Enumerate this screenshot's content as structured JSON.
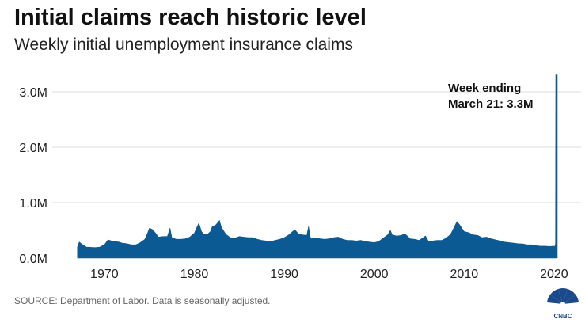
{
  "header": {
    "title": "Initial claims reach historic level",
    "subtitle": "Weekly initial unemployment insurance claims"
  },
  "footer": {
    "source": "SOURCE: Department of Labor. Data is seasonally adjusted.",
    "logo_text": "CNBC"
  },
  "colors": {
    "bar": "#0b5a93",
    "grid": "#dcdcdc",
    "text": "#111111"
  },
  "chart_data": {
    "type": "area",
    "title": "Initial claims reach historic level",
    "subtitle": "Weekly initial unemployment insurance claims",
    "xlabel": "",
    "ylabel": "",
    "xlim": [
      1964.2,
      2023.0
    ],
    "ylim": [
      0,
      3300000
    ],
    "yticks": [
      {
        "value": 0,
        "label": "0.0M"
      },
      {
        "value": 1000000,
        "label": "1.0M"
      },
      {
        "value": 2000000,
        "label": "2.0M"
      },
      {
        "value": 3000000,
        "label": "3.0M"
      }
    ],
    "xticks": [
      {
        "value": 1970,
        "label": "1970"
      },
      {
        "value": 1980,
        "label": "1980"
      },
      {
        "value": 1990,
        "label": "1990"
      },
      {
        "value": 2000,
        "label": "2000"
      },
      {
        "value": 2010,
        "label": "2010"
      },
      {
        "value": 2020,
        "label": "2020"
      }
    ],
    "grid": "horizontal",
    "series": [
      {
        "points": [
          [
            1967.0,
            200000
          ],
          [
            1967.2,
            290000
          ],
          [
            1967.6,
            240000
          ],
          [
            1968.0,
            200000
          ],
          [
            1968.5,
            195000
          ],
          [
            1969.0,
            190000
          ],
          [
            1969.5,
            200000
          ],
          [
            1970.0,
            240000
          ],
          [
            1970.4,
            330000
          ],
          [
            1970.8,
            310000
          ],
          [
            1971.2,
            300000
          ],
          [
            1971.6,
            290000
          ],
          [
            1972.0,
            270000
          ],
          [
            1972.5,
            260000
          ],
          [
            1973.0,
            240000
          ],
          [
            1973.5,
            240000
          ],
          [
            1974.0,
            280000
          ],
          [
            1974.5,
            340000
          ],
          [
            1974.8,
            450000
          ],
          [
            1975.0,
            540000
          ],
          [
            1975.3,
            520000
          ],
          [
            1975.7,
            450000
          ],
          [
            1976.0,
            380000
          ],
          [
            1976.5,
            390000
          ],
          [
            1977.0,
            390000
          ],
          [
            1977.3,
            540000
          ],
          [
            1977.5,
            370000
          ],
          [
            1978.0,
            340000
          ],
          [
            1978.5,
            340000
          ],
          [
            1979.0,
            350000
          ],
          [
            1979.5,
            380000
          ],
          [
            1980.0,
            450000
          ],
          [
            1980.3,
            560000
          ],
          [
            1980.5,
            630000
          ],
          [
            1980.8,
            480000
          ],
          [
            1981.0,
            440000
          ],
          [
            1981.4,
            420000
          ],
          [
            1981.8,
            480000
          ],
          [
            1982.0,
            570000
          ],
          [
            1982.4,
            600000
          ],
          [
            1982.8,
            680000
          ],
          [
            1983.0,
            560000
          ],
          [
            1983.5,
            430000
          ],
          [
            1984.0,
            370000
          ],
          [
            1984.5,
            360000
          ],
          [
            1985.0,
            390000
          ],
          [
            1985.5,
            380000
          ],
          [
            1986.0,
            370000
          ],
          [
            1986.5,
            370000
          ],
          [
            1987.0,
            340000
          ],
          [
            1987.5,
            320000
          ],
          [
            1988.0,
            310000
          ],
          [
            1988.5,
            300000
          ],
          [
            1989.0,
            320000
          ],
          [
            1989.5,
            340000
          ],
          [
            1990.0,
            370000
          ],
          [
            1990.5,
            420000
          ],
          [
            1991.0,
            490000
          ],
          [
            1991.2,
            510000
          ],
          [
            1991.6,
            430000
          ],
          [
            1992.0,
            420000
          ],
          [
            1992.5,
            410000
          ],
          [
            1992.7,
            570000
          ],
          [
            1992.9,
            380000
          ],
          [
            1993.0,
            350000
          ],
          [
            1993.5,
            360000
          ],
          [
            1994.0,
            350000
          ],
          [
            1994.5,
            340000
          ],
          [
            1995.0,
            350000
          ],
          [
            1995.5,
            370000
          ],
          [
            1996.0,
            380000
          ],
          [
            1996.5,
            340000
          ],
          [
            1997.0,
            320000
          ],
          [
            1997.5,
            320000
          ],
          [
            1998.0,
            310000
          ],
          [
            1998.5,
            320000
          ],
          [
            1999.0,
            300000
          ],
          [
            1999.5,
            290000
          ],
          [
            2000.0,
            280000
          ],
          [
            2000.5,
            300000
          ],
          [
            2001.0,
            360000
          ],
          [
            2001.5,
            420000
          ],
          [
            2001.8,
            500000
          ],
          [
            2002.0,
            420000
          ],
          [
            2002.5,
            400000
          ],
          [
            2003.0,
            410000
          ],
          [
            2003.4,
            440000
          ],
          [
            2003.8,
            380000
          ],
          [
            2004.0,
            350000
          ],
          [
            2004.5,
            340000
          ],
          [
            2005.0,
            320000
          ],
          [
            2005.7,
            400000
          ],
          [
            2006.0,
            310000
          ],
          [
            2006.5,
            310000
          ],
          [
            2007.0,
            320000
          ],
          [
            2007.5,
            320000
          ],
          [
            2008.0,
            360000
          ],
          [
            2008.5,
            430000
          ],
          [
            2008.9,
            560000
          ],
          [
            2009.2,
            660000
          ],
          [
            2009.5,
            600000
          ],
          [
            2010.0,
            480000
          ],
          [
            2010.5,
            460000
          ],
          [
            2011.0,
            420000
          ],
          [
            2011.5,
            410000
          ],
          [
            2012.0,
            370000
          ],
          [
            2012.5,
            380000
          ],
          [
            2013.0,
            350000
          ],
          [
            2013.5,
            330000
          ],
          [
            2014.0,
            310000
          ],
          [
            2014.5,
            290000
          ],
          [
            2015.0,
            280000
          ],
          [
            2015.5,
            270000
          ],
          [
            2016.0,
            260000
          ],
          [
            2016.5,
            255000
          ],
          [
            2017.0,
            240000
          ],
          [
            2017.5,
            240000
          ],
          [
            2018.0,
            225000
          ],
          [
            2018.5,
            215000
          ],
          [
            2019.0,
            215000
          ],
          [
            2019.5,
            210000
          ],
          [
            2020.0,
            215000
          ],
          [
            2020.12,
            211000
          ],
          [
            2020.16,
            281000
          ],
          [
            2020.18,
            3307000
          ]
        ]
      }
    ],
    "annotations": [
      {
        "x": 2020.18,
        "y": 3307000,
        "lines": [
          "Week ending",
          "March 21: 3.3M"
        ]
      }
    ]
  }
}
